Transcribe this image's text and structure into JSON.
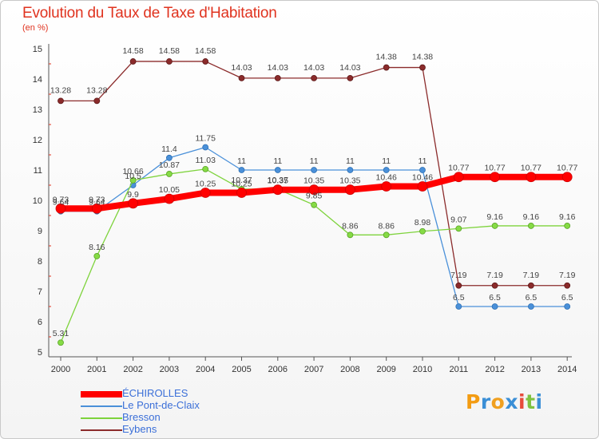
{
  "page": {
    "title": "Evolution du Taux de Taxe d'Habitation",
    "unit": "(en %)"
  },
  "chart_data": {
    "type": "line",
    "title": "Evolution du Taux de Taxe d'Habitation",
    "ylabel": "(en %)",
    "xlabel": "",
    "ylim": [
      5,
      15
    ],
    "yticks": [
      5,
      6,
      7,
      8,
      9,
      10,
      11,
      12,
      13,
      14,
      15
    ],
    "categories": [
      "2000",
      "2001",
      "2002",
      "2003",
      "2004",
      "2005",
      "2006",
      "2007",
      "2008",
      "2009",
      "2010",
      "2011",
      "2012",
      "2013",
      "2014"
    ],
    "grid": false,
    "legend_position": "bottom-left",
    "series": [
      {
        "name": "ÉCHIROLLES",
        "color": "#ff0000",
        "values": [
          9.73,
          9.73,
          9.9,
          10.05,
          10.25,
          10.25,
          10.35,
          10.35,
          10.35,
          10.46,
          10.46,
          10.77,
          10.77,
          10.77,
          10.77
        ],
        "labels": [
          "9.73",
          "9.73",
          "9.9",
          "10.05",
          "10.25",
          "10.25",
          "10.35",
          "10.35",
          "10.35",
          "10.46",
          "10.46",
          "10.77",
          "10.77",
          "10.77",
          "10.77"
        ]
      },
      {
        "name": "Le Pont-de-Claix",
        "color": "#4a90d9",
        "values": [
          9.64,
          9.64,
          10.5,
          11.4,
          11.75,
          11,
          11,
          11,
          11,
          11,
          11,
          6.5,
          6.5,
          6.5,
          6.5
        ],
        "labels": [
          "9.64",
          "9.64",
          "10.5",
          "11.4",
          "11.75",
          "11",
          "11",
          "11",
          "11",
          "11",
          "11",
          "6.5",
          "6.5",
          "6.5",
          "6.5"
        ]
      },
      {
        "name": "Bresson",
        "color": "#7ed33c",
        "values": [
          5.31,
          8.16,
          10.66,
          10.87,
          11.03,
          10.37,
          10.37,
          9.85,
          8.86,
          8.86,
          8.98,
          9.07,
          9.16,
          9.16,
          9.16
        ],
        "labels": [
          "5.31",
          "8.16",
          "10.66",
          "10.87",
          "11.03",
          "10.37",
          "10.37",
          "9.85",
          "8.86",
          "8.86",
          "8.98",
          "9.07",
          "9.16",
          "9.16",
          "9.16"
        ]
      },
      {
        "name": "Eybens",
        "color": "#8b2b2b",
        "values": [
          13.28,
          13.28,
          14.58,
          14.58,
          14.58,
          14.03,
          14.03,
          14.03,
          14.03,
          14.38,
          14.38,
          7.19,
          7.19,
          7.19,
          7.19
        ],
        "labels": [
          "13.28",
          "13.28",
          "14.58",
          "14.58",
          "14.58",
          "14.03",
          "14.03",
          "14.03",
          "14.03",
          "14.38",
          "14.38",
          "7.19",
          "7.19",
          "7.19",
          "7.19"
        ]
      }
    ]
  },
  "logo": {
    "letters": [
      "P",
      "r",
      "o",
      "x",
      "i",
      "t",
      "i"
    ],
    "colors": [
      "#f39c12",
      "#3b8fd6",
      "#f0a020",
      "#3b8fd6",
      "#e74c3c",
      "#7fc241",
      "#3b8fd6"
    ]
  }
}
